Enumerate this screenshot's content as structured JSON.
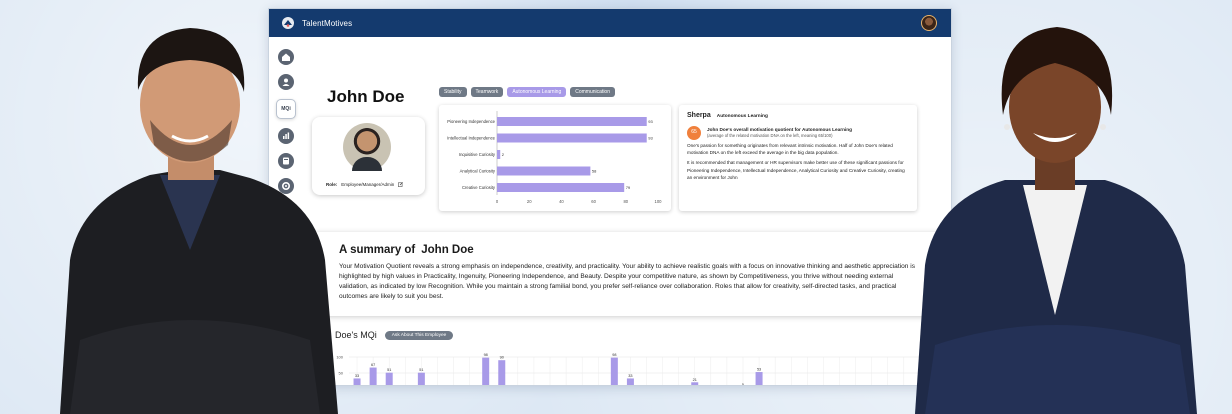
{
  "app": {
    "brand": "TalentMotives"
  },
  "sidebar": {
    "active_label": "MQi"
  },
  "profile": {
    "name": "John Doe",
    "role_label": "Role:",
    "role_value": "Employee/Manager/Admin"
  },
  "tabs": [
    {
      "label": "Stability",
      "active": false
    },
    {
      "label": "Teamwork",
      "active": false
    },
    {
      "label": "Autonomous Learning",
      "active": true
    },
    {
      "label": "Communication",
      "active": false
    }
  ],
  "chart_data": [
    {
      "type": "bar",
      "orientation": "horizontal",
      "categories": [
        "Pioneering Independence",
        "Intellectual Independence",
        "Inquisitive Curiosity",
        "Analytical Curiosity",
        "Creative Curiosity"
      ],
      "values": [
        93,
        93,
        2,
        58,
        79
      ],
      "xlim": [
        0,
        100
      ],
      "xticks": [
        0,
        20,
        40,
        60,
        80,
        100
      ],
      "color": "#a89ae8"
    },
    {
      "type": "bar",
      "title": "Doe's MQi",
      "yticks": [
        100,
        50,
        0
      ],
      "ylim": [
        0,
        100
      ],
      "values": [
        33,
        67,
        51,
        0,
        51,
        0,
        0,
        0,
        98,
        90,
        0,
        0,
        0,
        0,
        0,
        0,
        98,
        33,
        0,
        0,
        0,
        21,
        0,
        0,
        5,
        53,
        0,
        0,
        0,
        0,
        0,
        0,
        0,
        0,
        0,
        0,
        0
      ],
      "labels": [
        "33",
        "67",
        "51",
        "",
        "51",
        "",
        "",
        "",
        "98",
        "90",
        "",
        "",
        "",
        "",
        "",
        "",
        "98",
        "33",
        "",
        "",
        "",
        "21",
        "",
        "",
        "5",
        "53",
        "",
        "",
        "",
        "",
        "",
        "",
        "",
        "",
        "",
        "",
        ""
      ],
      "color": "#a89ae8"
    }
  ],
  "sherpa": {
    "title": "Sherpa",
    "topic": "Autonomous Learning",
    "score": "65",
    "score_line_name": "John Doe's",
    "score_line_text": "overall motivation quotient for Autonomous Learning",
    "score_sub": "(average of the related motivation DNA on the left, meaning 65/100)",
    "para1": "One's passion for something originates from relevant intrinsic motivation. Half of John Doe's related motivation DNA on the left exceed the average in the big data population.",
    "para2": "It is recommended that management or HR supervisors make better use of these significant passions for Pioneering Independence, Intellectual Independence, Analytical Curiosity and Creative Curiosity, creating an environment for John"
  },
  "summary": {
    "title_prefix": "A summary of",
    "title_name": "John Doe",
    "text": "Your Motivation Quotient reveals a strong emphasis on independence, creativity, and practicality. Your ability to achieve realistic goals with a focus on innovative thinking and aesthetic appreciation is highlighted by high values in Practicality, Ingenuity, Pioneering Independence, and Beauty. Despite your competitive nature, as shown by Competitiveness, you thrive without needing external validation, as indicated by low Recognition. While you maintain a strong familial bond, you prefer self-reliance over collaboration. Roles that allow for creativity, self-directed tasks, and practical outcomes are likely to suit you best."
  },
  "mqi": {
    "title": "Doe's MQi",
    "ask_button": "Ask About This Employee"
  },
  "colors": {
    "header": "#143a6e",
    "accent": "#a89ae8",
    "score": "#f0803c"
  }
}
